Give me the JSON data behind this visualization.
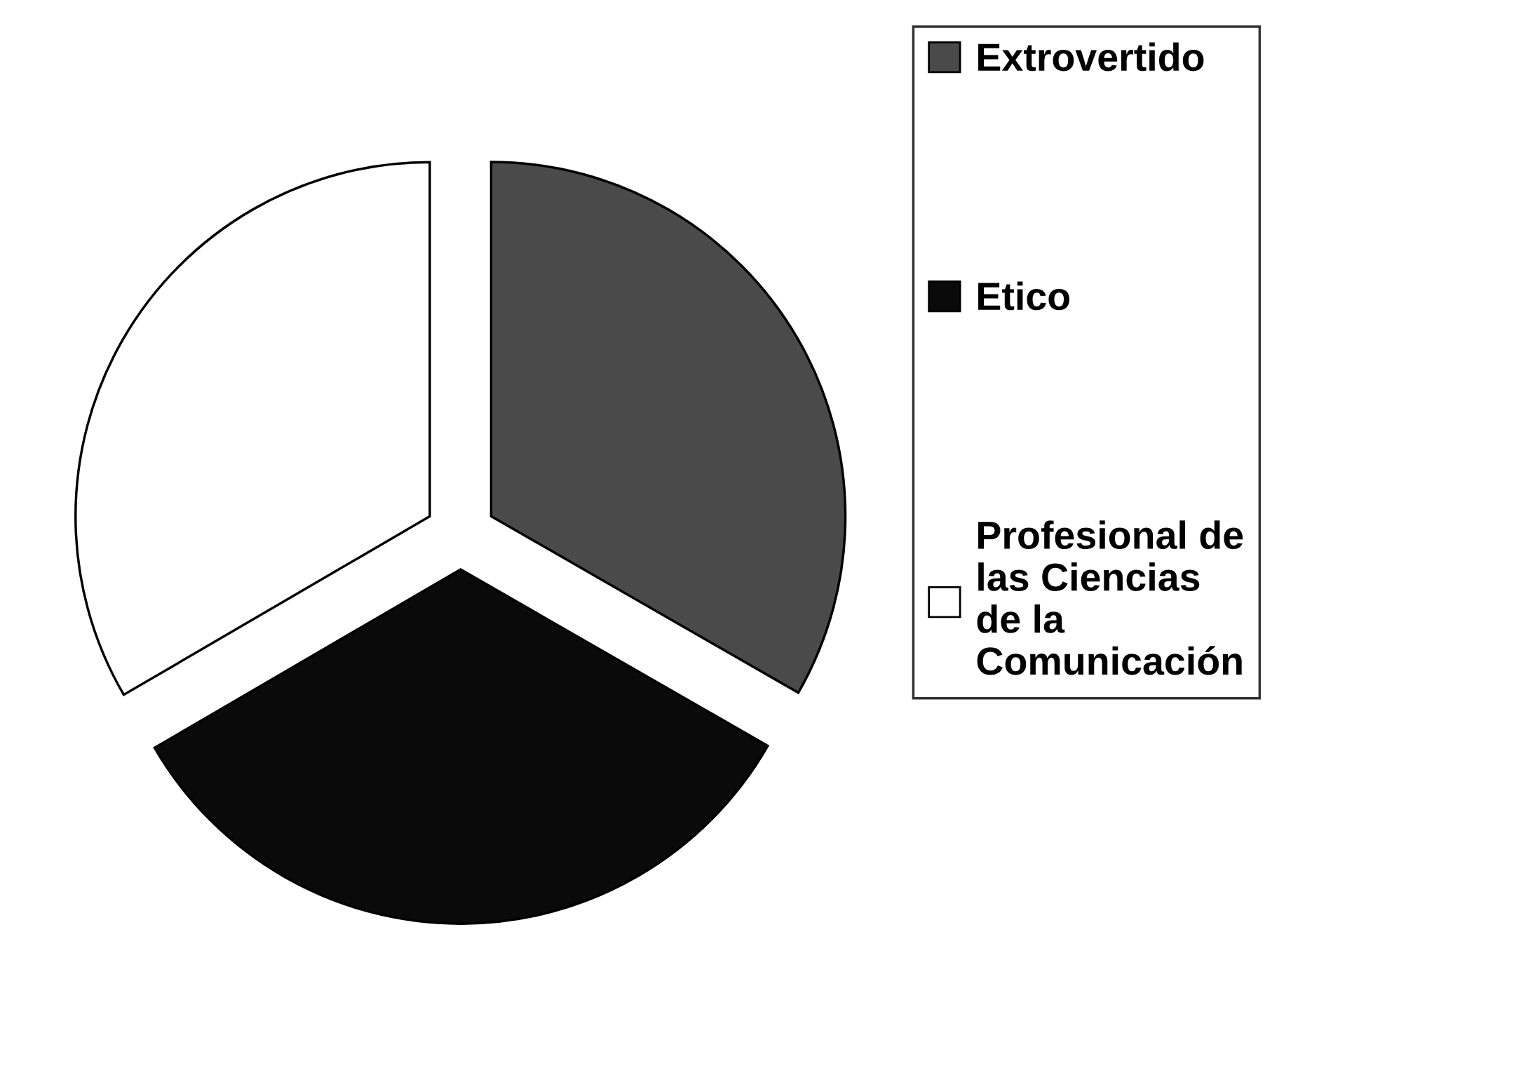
{
  "chart_data": {
    "type": "pie",
    "categories": [
      "Extrovertido",
      "Etico",
      "Profesional de\nlas Ciencias\nde la\nComunicación"
    ],
    "values": [
      33.3,
      33.3,
      33.4
    ],
    "colors": [
      "#4a4a4a",
      "#0a0a0a",
      "#ffffff"
    ],
    "legend": "right"
  }
}
